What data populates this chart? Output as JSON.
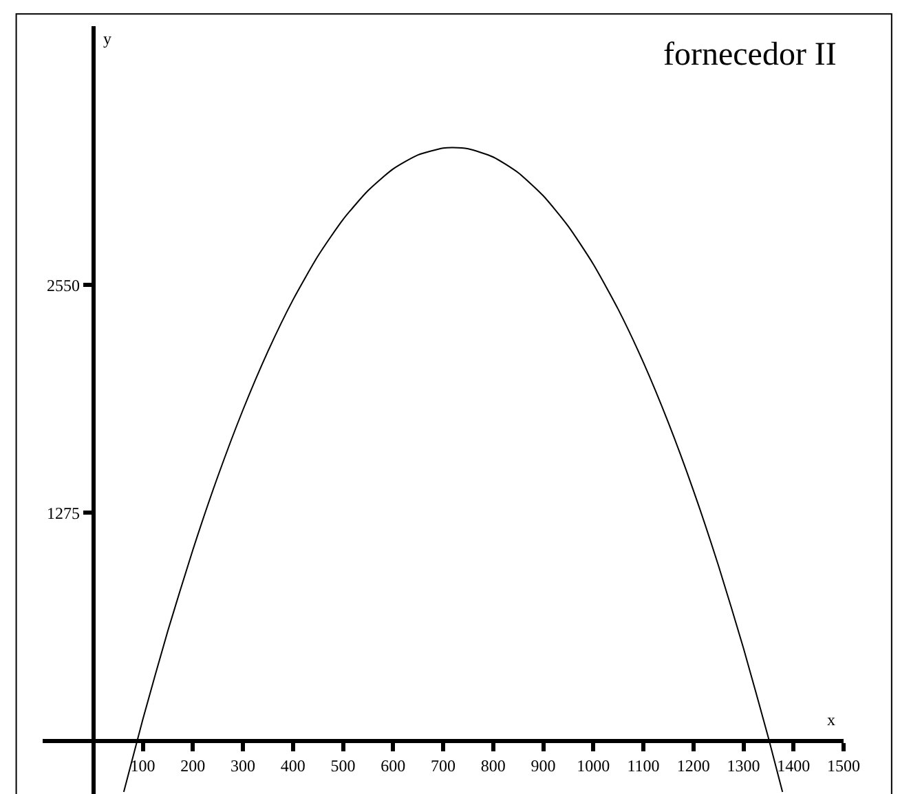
{
  "chart_data": {
    "type": "line",
    "title": "fornecedor II",
    "xlabel": "x",
    "ylabel": "y",
    "x": [
      62,
      100,
      150,
      200,
      250,
      300,
      350,
      400,
      450,
      500,
      550,
      600,
      650,
      700,
      720,
      750,
      800,
      850,
      900,
      950,
      1000,
      1050,
      1100,
      1150,
      1200,
      1250,
      1300,
      1350,
      1378
    ],
    "series": [
      {
        "color": "#000000",
        "values": [
          -288,
          117,
          613,
          1067,
          1479,
          1850,
          2179,
          2467,
          2713,
          2917,
          3079,
          3200,
          3279,
          3317,
          3320,
          3313,
          3267,
          3179,
          3050,
          2879,
          2667,
          2413,
          2117,
          1779,
          1400,
          979,
          517,
          13,
          -288
        ]
      }
    ],
    "xlim": [
      -100,
      1500
    ],
    "ylim": [
      -300,
      4000
    ],
    "xticks": [
      100,
      200,
      300,
      400,
      500,
      600,
      700,
      800,
      900,
      1000,
      1100,
      1200,
      1300,
      1400,
      1500
    ],
    "yticks": [
      1275,
      2550
    ],
    "marker": "none",
    "line_style": "solid"
  }
}
